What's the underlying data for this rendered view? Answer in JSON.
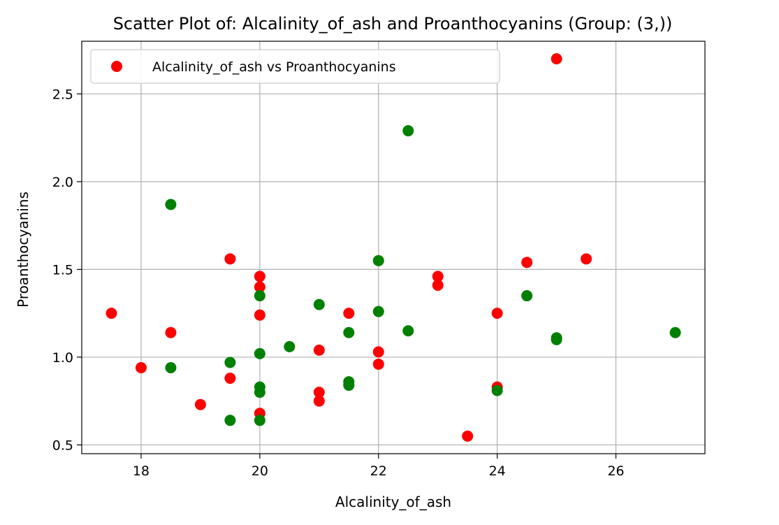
{
  "chart_data": {
    "type": "scatter",
    "title": "Scatter Plot of: Alcalinity_of_ash and Proanthocyanins (Group: (3,))",
    "xlabel": "Alcalinity_of_ash",
    "ylabel": "Proanthocyanins",
    "xlim": [
      17.0,
      27.5
    ],
    "ylim": [
      0.45,
      2.8
    ],
    "xticks": [
      18,
      20,
      22,
      24,
      26
    ],
    "yticks": [
      0.5,
      1.0,
      1.5,
      2.0,
      2.5
    ],
    "xtick_labels": [
      "18",
      "20",
      "22",
      "24",
      "26"
    ],
    "ytick_labels": [
      "0.5",
      "1.0",
      "1.5",
      "2.0",
      "2.5"
    ],
    "grid": true,
    "legend_position": "upper-left",
    "series": [
      {
        "name": "Alcalinity_of_ash vs Proanthocyanins",
        "color": "#ff0000",
        "in_legend": true,
        "points": [
          [
            17.5,
            1.25
          ],
          [
            18.0,
            0.94
          ],
          [
            18.5,
            1.14
          ],
          [
            19.0,
            0.73
          ],
          [
            19.5,
            1.56
          ],
          [
            19.5,
            0.88
          ],
          [
            20.0,
            1.46
          ],
          [
            20.0,
            1.4
          ],
          [
            20.0,
            1.24
          ],
          [
            20.0,
            0.68
          ],
          [
            21.0,
            1.04
          ],
          [
            21.0,
            0.8
          ],
          [
            21.0,
            0.75
          ],
          [
            21.5,
            1.25
          ],
          [
            22.0,
            1.03
          ],
          [
            22.0,
            0.96
          ],
          [
            23.0,
            1.46
          ],
          [
            23.0,
            1.41
          ],
          [
            23.5,
            0.55
          ],
          [
            24.0,
            1.25
          ],
          [
            24.0,
            0.83
          ],
          [
            24.5,
            1.54
          ],
          [
            25.0,
            2.7
          ],
          [
            25.5,
            1.56
          ]
        ]
      },
      {
        "name": "",
        "color": "#008000",
        "in_legend": false,
        "points": [
          [
            18.5,
            1.87
          ],
          [
            18.5,
            0.94
          ],
          [
            19.5,
            0.97
          ],
          [
            19.5,
            0.64
          ],
          [
            20.0,
            1.35
          ],
          [
            20.0,
            1.02
          ],
          [
            20.0,
            0.83
          ],
          [
            20.0,
            0.8
          ],
          [
            20.0,
            0.64
          ],
          [
            20.5,
            1.06
          ],
          [
            21.0,
            1.3
          ],
          [
            21.5,
            1.14
          ],
          [
            21.5,
            0.86
          ],
          [
            21.5,
            0.84
          ],
          [
            22.0,
            1.55
          ],
          [
            22.0,
            1.26
          ],
          [
            22.5,
            2.29
          ],
          [
            22.5,
            1.15
          ],
          [
            24.0,
            0.81
          ],
          [
            24.5,
            1.35
          ],
          [
            25.0,
            1.11
          ],
          [
            25.0,
            1.1
          ],
          [
            27.0,
            1.14
          ]
        ]
      }
    ]
  }
}
